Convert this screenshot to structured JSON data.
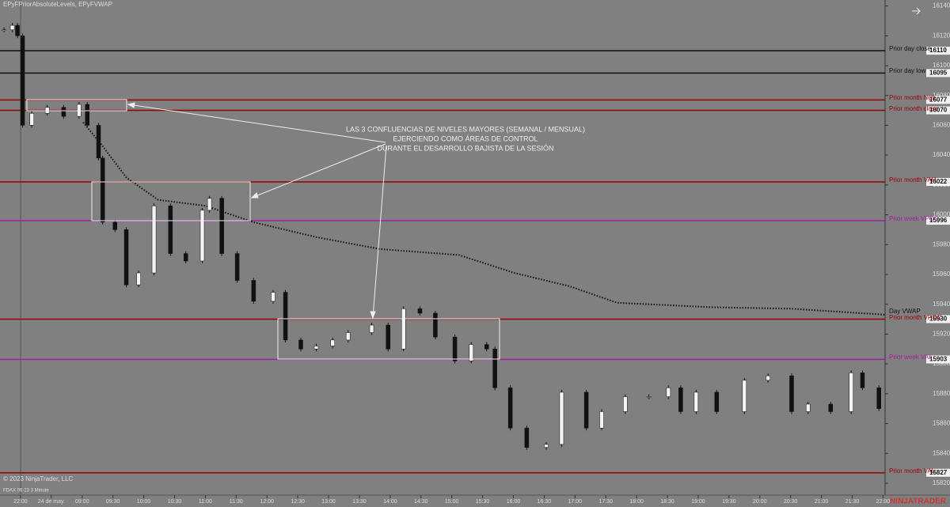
{
  "chart_data": {
    "type": "candlestick",
    "title": "EPyFPriorAbsoluteLevels, EPyFVWAP",
    "instrument": "FDAX 06-23 3 Minute",
    "copyright": "© 2023 NinjaTrader, LLC",
    "brand": "NINJATRADER",
    "annotation": [
      "LAS 3 CONFLUENCIAS DE NIVELES MAYORES (SEMANAL / MENSUAL)",
      "EJERCIENDO COMO ÁREAS DE CONTROL",
      "DURANTE EL DESARROLLO BAJISTA DE LA SESIÓN"
    ],
    "xlim": [
      -80,
      782
    ],
    "ylim": [
      15812,
      16144
    ],
    "xticks": [
      {
        "value": -60,
        "label": "22:00"
      },
      {
        "value": -30,
        "label": "24 de may."
      },
      {
        "value": 0,
        "label": "09:00"
      },
      {
        "value": 30,
        "label": "09:30"
      },
      {
        "value": 60,
        "label": "10:00"
      },
      {
        "value": 90,
        "label": "10:30"
      },
      {
        "value": 120,
        "label": "11:00"
      },
      {
        "value": 150,
        "label": "11:30"
      },
      {
        "value": 180,
        "label": "12:00"
      },
      {
        "value": 210,
        "label": "12:30"
      },
      {
        "value": 240,
        "label": "13:00"
      },
      {
        "value": 270,
        "label": "13:30"
      },
      {
        "value": 300,
        "label": "14:00"
      },
      {
        "value": 330,
        "label": "14:30"
      },
      {
        "value": 360,
        "label": "15:00"
      },
      {
        "value": 390,
        "label": "15:30"
      },
      {
        "value": 420,
        "label": "16:00"
      },
      {
        "value": 450,
        "label": "16:30"
      },
      {
        "value": 480,
        "label": "17:00"
      },
      {
        "value": 510,
        "label": "17:30"
      },
      {
        "value": 540,
        "label": "18:00"
      },
      {
        "value": 570,
        "label": "18:30"
      },
      {
        "value": 600,
        "label": "19:00"
      },
      {
        "value": 630,
        "label": "19:30"
      },
      {
        "value": 660,
        "label": "20:00"
      },
      {
        "value": 690,
        "label": "20:30"
      },
      {
        "value": 720,
        "label": "21:00"
      },
      {
        "value": 750,
        "label": "21:30"
      },
      {
        "value": 780,
        "label": "22:00"
      }
    ],
    "yticks": [
      16140,
      16120,
      16100,
      16080,
      16060,
      16040,
      16020,
      16000,
      15980,
      15960,
      15940,
      15920,
      15900,
      15880,
      15860,
      15840,
      15820
    ],
    "x": [
      -76,
      -68,
      -63,
      -58,
      -49,
      -34,
      -18,
      -3,
      5,
      16,
      20,
      32,
      43,
      55,
      70,
      86,
      101,
      117,
      124,
      136,
      151,
      167,
      186,
      198,
      213,
      228,
      244,
      259,
      282,
      298,
      313,
      329,
      344,
      363,
      379,
      394,
      402,
      417,
      433,
      452,
      467,
      491,
      506,
      529,
      552,
      571,
      583,
      598,
      618,
      645,
      668,
      691,
      707,
      729,
      749,
      760,
      776
    ],
    "values": [
      16124,
      16127,
      16120,
      16060,
      16068,
      16072,
      16066,
      16074,
      16060,
      16038,
      15995,
      15990,
      15953,
      15961,
      16006,
      15974,
      15969,
      16003,
      16011,
      15974,
      15956,
      15942,
      15948,
      15916,
      15910,
      15912,
      15916,
      15921,
      15926,
      15910,
      15937,
      15934,
      15918,
      15902,
      15913,
      15910,
      15884,
      15857,
      15844,
      15846,
      15881,
      15857,
      15868,
      15878,
      15878,
      15884,
      15868,
      15881,
      15868,
      15889,
      15892,
      15868,
      15873,
      15868,
      15894,
      15884,
      15870
    ],
    "vwap": {
      "name": "Day VWAP",
      "color": "#111111",
      "x": [
        1,
        20,
        43,
        74,
        120,
        167,
        228,
        290,
        367,
        421,
        475,
        521,
        613,
        691,
        782
      ],
      "values": [
        16062,
        16046,
        16025,
        16010,
        16006,
        15995,
        15985,
        15977,
        15973,
        15961,
        15952,
        15941,
        15938,
        15937,
        15933
      ]
    },
    "levels": [
      {
        "name": "Prior day close",
        "value": 16110,
        "color": "#111111"
      },
      {
        "name": "Prior day low",
        "value": 16095,
        "color": "#111111"
      },
      {
        "name": "Prior month high",
        "value": 16077,
        "color": "#9a0000"
      },
      {
        "name": "Prior month close",
        "value": 16070,
        "color": "#9a0000"
      },
      {
        "name": "Prior month VAH",
        "value": 16022,
        "color": "#9a0000"
      },
      {
        "name": "Prior week VPOC",
        "value": 15996,
        "color": "#a020a0"
      },
      {
        "name": "Prior month VPOC",
        "value": 15930,
        "color": "#9a0000"
      },
      {
        "name": "Prior week VAL",
        "value": 15903,
        "color": "#a020a0"
      },
      {
        "name": "Prior month VAL",
        "value": 15827,
        "color": "#9a0000"
      }
    ]
  }
}
